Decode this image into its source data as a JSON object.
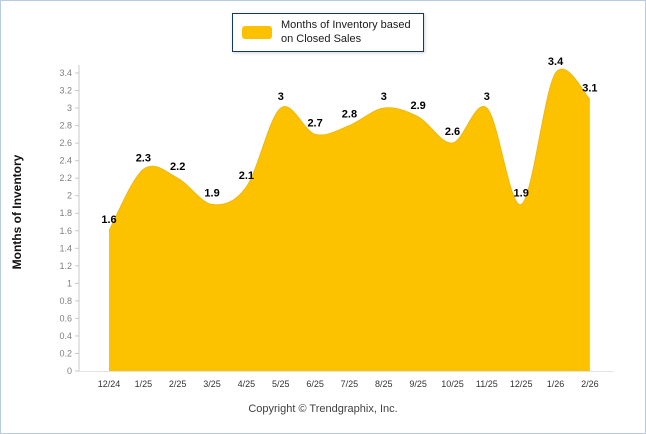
{
  "legend": {
    "line1": "Months of Inventory based",
    "line2": "on Closed Sales"
  },
  "footer": {
    "copyright": "Copyright © Trendgraphix, Inc."
  },
  "chart_data": {
    "type": "area",
    "title": "",
    "series_name": "Months of Inventory based on Closed Sales",
    "categories": [
      "12/24",
      "1/25",
      "2/25",
      "3/25",
      "4/25",
      "5/25",
      "6/25",
      "7/25",
      "8/25",
      "9/25",
      "10/25",
      "11/25",
      "12/25",
      "1/26",
      "2/26"
    ],
    "values": [
      1.6,
      2.3,
      2.2,
      1.9,
      2.1,
      3,
      2.7,
      2.8,
      3,
      2.9,
      2.6,
      3,
      1.9,
      3.4,
      3.1
    ],
    "xlabel": "",
    "ylabel": "Months of Inventory",
    "ylim": [
      0,
      3.4
    ],
    "ytick_step": 0.2,
    "grid": false,
    "legend_position": "top",
    "fill_color": "#FCC200",
    "edge_color": "#F2B705",
    "label_color": "#000000",
    "axis_color": "#C9C9C9",
    "tick_label_color": "#7F7F7F",
    "x_label_color": "#333333"
  }
}
